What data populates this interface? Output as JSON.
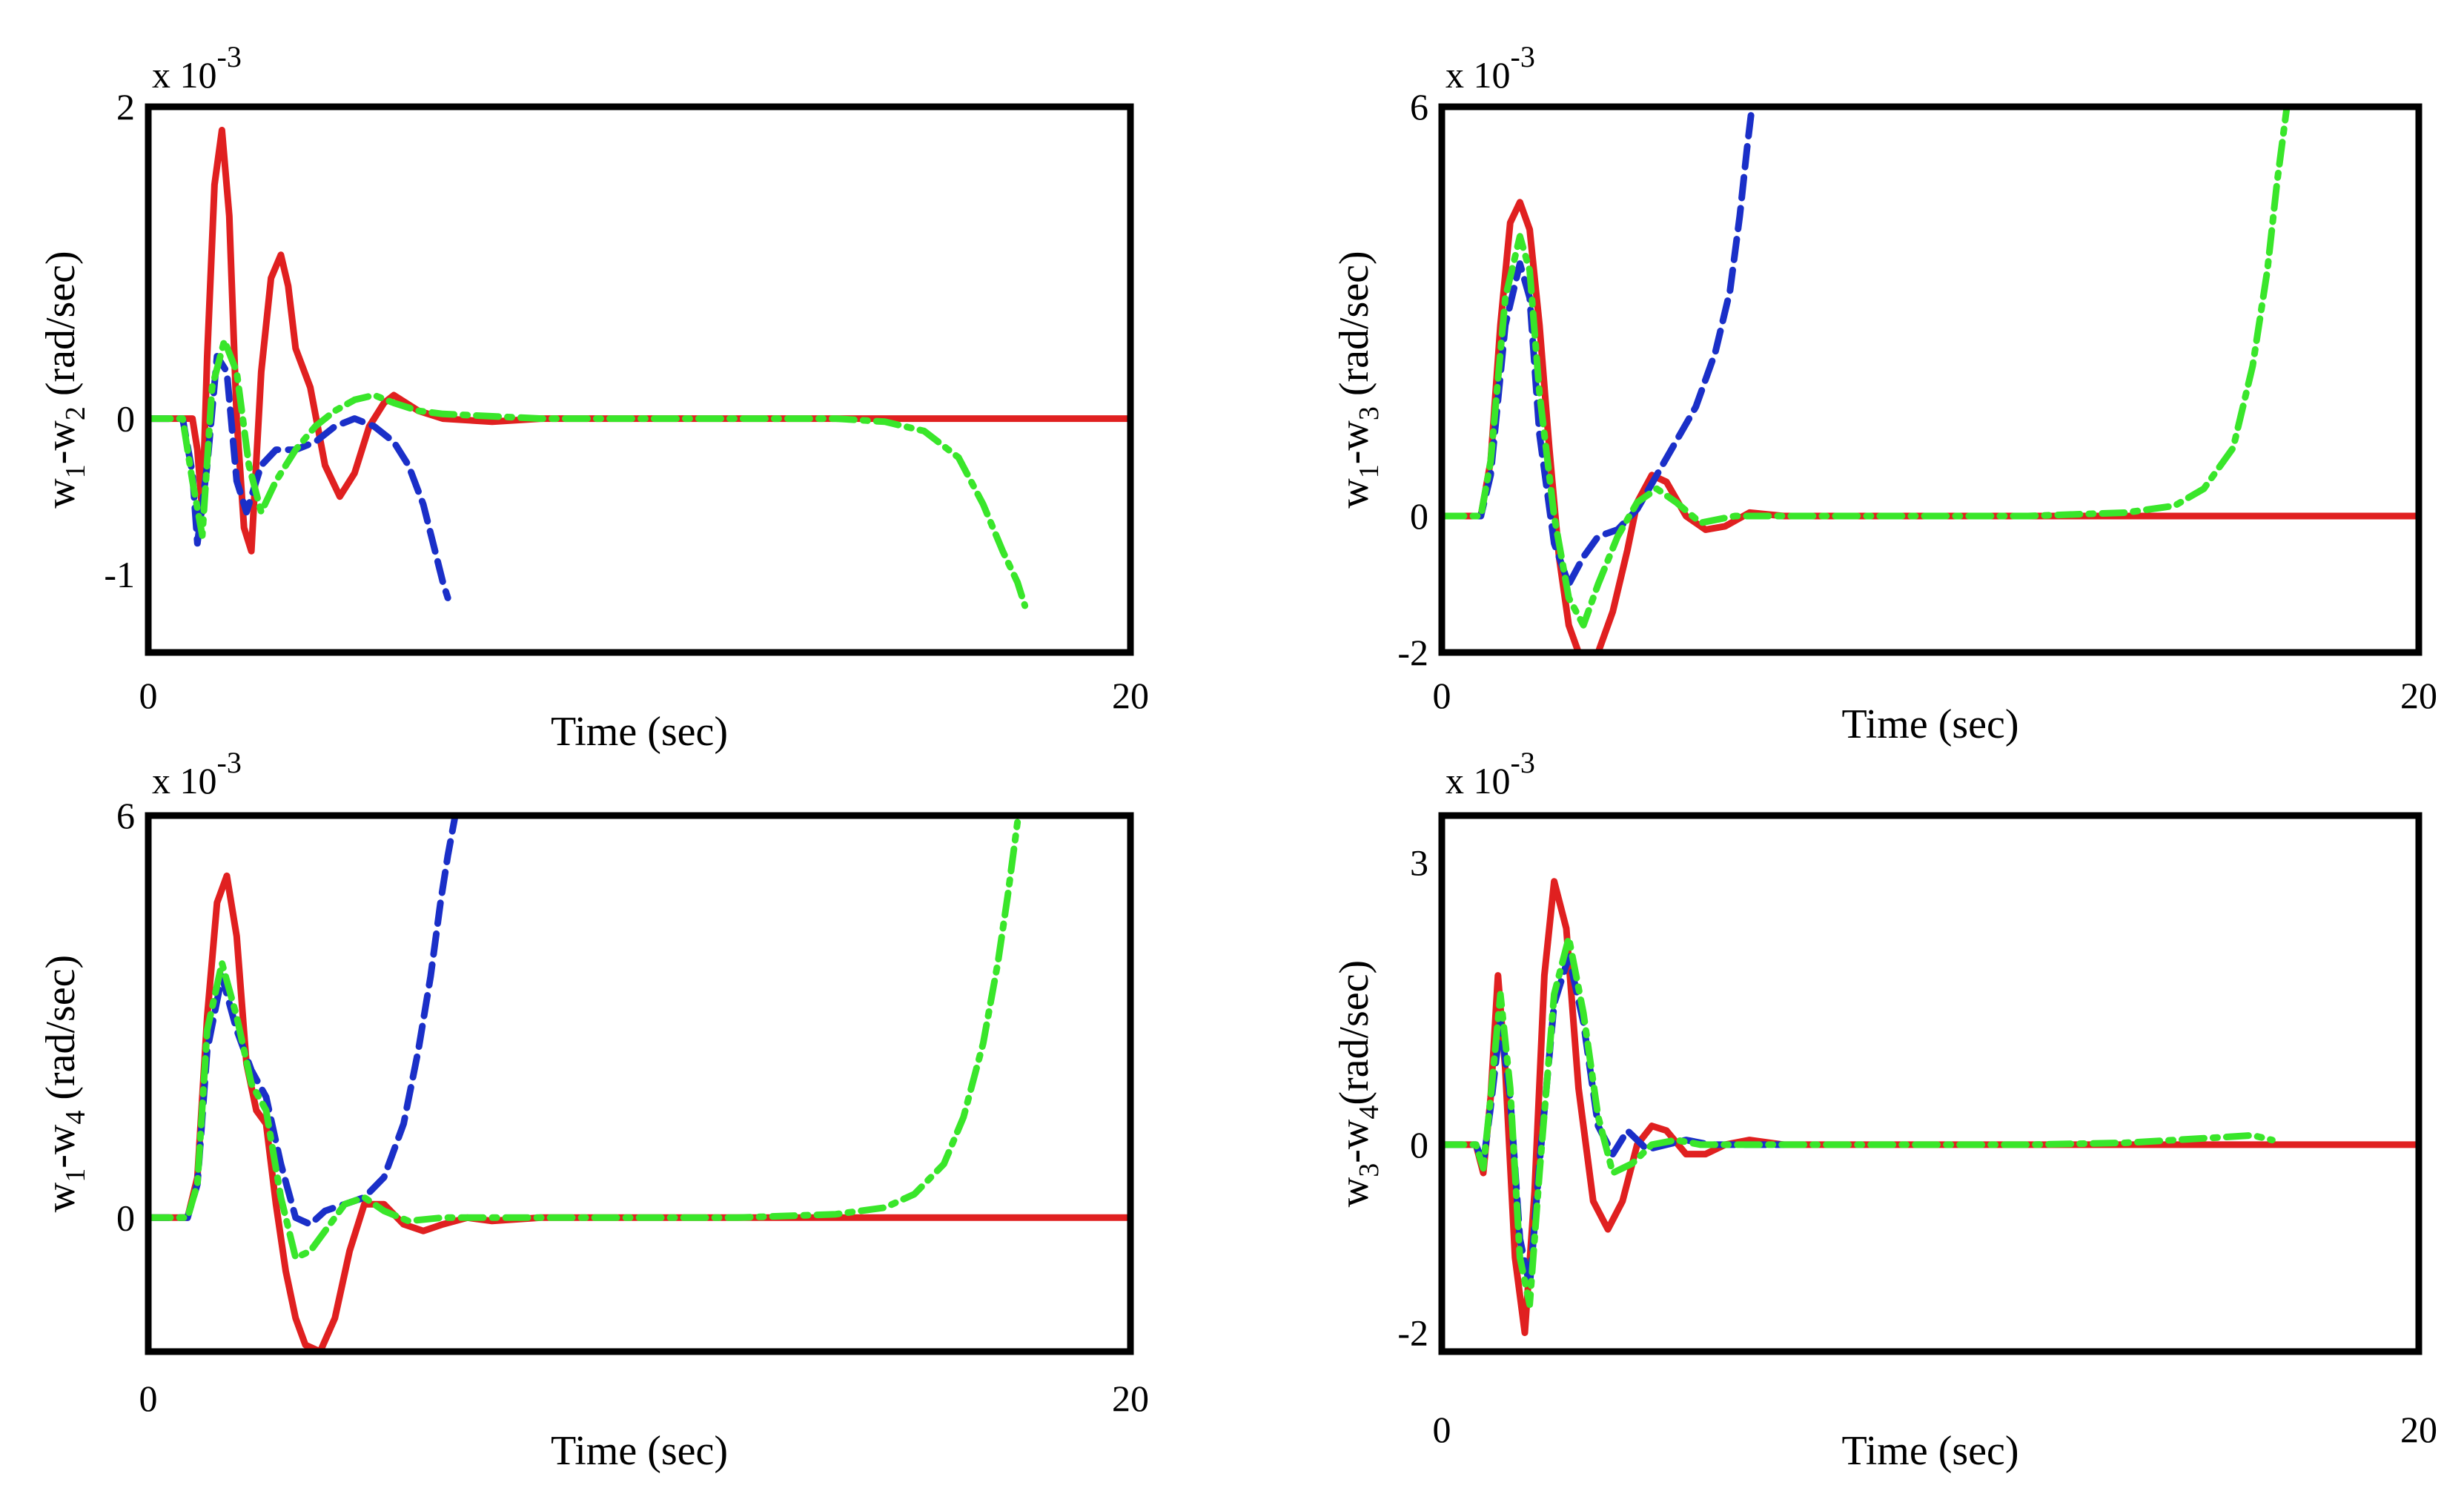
{
  "colors": {
    "red": "#e02020",
    "blue": "#1a2fc8",
    "green": "#39e62a",
    "axis": "#000000"
  },
  "chart_data": [
    {
      "type": "line",
      "id": "p1",
      "xlabel": "Time (sec)",
      "ylabel_parts": [
        "w",
        "1",
        "-w",
        "2",
        " (rad/sec)"
      ],
      "multiplier": {
        "base": "x 10",
        "exp": "-3"
      },
      "xlim": [
        0,
        20
      ],
      "ylim": [
        -1.5,
        2
      ],
      "xticks": [
        "0",
        "20"
      ],
      "xtick_values": [
        0,
        20
      ],
      "yticks": [
        "2",
        "0",
        "-1"
      ],
      "ytick_values": [
        2,
        0,
        -1
      ],
      "series": [
        {
          "name": "red-solid",
          "color": "#e02020",
          "dash": "solid",
          "x": [
            0,
            0.9,
            1.0,
            1.1,
            1.2,
            1.35,
            1.5,
            1.65,
            1.8,
            1.95,
            2.1,
            2.3,
            2.5,
            2.7,
            2.85,
            3.0,
            3.3,
            3.6,
            3.9,
            4.2,
            4.5,
            4.8,
            5.0,
            5.5,
            6.0,
            7.0,
            8,
            10,
            12,
            14,
            16,
            18,
            20
          ],
          "y": [
            0,
            0,
            -0.2,
            -0.6,
            0.4,
            1.5,
            1.85,
            1.3,
            0.0,
            -0.7,
            -0.85,
            0.3,
            0.9,
            1.05,
            0.85,
            0.45,
            0.2,
            -0.3,
            -0.5,
            -0.35,
            -0.05,
            0.1,
            0.15,
            0.05,
            0.0,
            -0.02,
            0,
            0,
            0,
            0,
            0,
            0,
            0
          ]
        },
        {
          "name": "blue-dashed",
          "color": "#1a2fc8",
          "dash": "dashed",
          "x": [
            0,
            0.7,
            0.9,
            1.0,
            1.2,
            1.4,
            1.6,
            1.8,
            2.0,
            2.3,
            2.6,
            3.0,
            3.4,
            3.8,
            4.2,
            4.6,
            5.0,
            5.3,
            5.6,
            5.8,
            6.0,
            6.1
          ],
          "y": [
            0,
            0,
            -0.35,
            -0.8,
            -0.3,
            0.4,
            0.3,
            -0.4,
            -0.6,
            -0.3,
            -0.2,
            -0.2,
            -0.15,
            -0.05,
            0.0,
            -0.05,
            -0.15,
            -0.3,
            -0.55,
            -0.8,
            -1.05,
            -1.15
          ]
        },
        {
          "name": "green-dashdot",
          "color": "#39e62a",
          "dash": "dashdot",
          "x": [
            0,
            0.7,
            0.9,
            1.1,
            1.3,
            1.55,
            1.8,
            2.05,
            2.3,
            2.6,
            3.0,
            3.4,
            3.8,
            4.2,
            4.6,
            5.0,
            5.5,
            6,
            8,
            10,
            12,
            14,
            15,
            15.8,
            16.5,
            17.0,
            17.4,
            17.7,
            17.85
          ],
          "y": [
            0,
            0,
            -0.4,
            -0.75,
            0.2,
            0.5,
            0.3,
            -0.3,
            -0.6,
            -0.4,
            -0.2,
            -0.05,
            0.05,
            0.12,
            0.15,
            0.1,
            0.05,
            0.03,
            0,
            0,
            0,
            0,
            -0.02,
            -0.08,
            -0.25,
            -0.55,
            -0.85,
            -1.05,
            -1.2
          ]
        }
      ]
    },
    {
      "type": "line",
      "id": "p2",
      "xlabel": "Time (sec)",
      "ylabel_parts": [
        "w",
        "1",
        "-w",
        "3",
        " (rad/sec)"
      ],
      "multiplier": {
        "base": "x 10",
        "exp": "-3"
      },
      "xlim": [
        0,
        20
      ],
      "ylim": [
        -2,
        6
      ],
      "xticks": [
        "0",
        "20"
      ],
      "xtick_values": [
        0,
        20
      ],
      "yticks": [
        "6",
        "0",
        "-2"
      ],
      "ytick_values": [
        6,
        0,
        -2
      ],
      "series": [
        {
          "name": "red-solid",
          "color": "#e02020",
          "dash": "solid",
          "x": [
            0,
            0.8,
            1.0,
            1.2,
            1.4,
            1.6,
            1.8,
            2.0,
            2.2,
            2.4,
            2.6,
            2.8,
            3.0,
            3.2,
            3.5,
            3.8,
            4.0,
            4.3,
            4.6,
            5.0,
            5.4,
            5.8,
            6.3,
            7,
            8,
            10,
            12,
            14,
            16,
            18,
            20
          ],
          "y": [
            0,
            0,
            0.8,
            2.8,
            4.3,
            4.6,
            4.2,
            2.8,
            1.0,
            -0.6,
            -1.6,
            -2.0,
            -2.05,
            -2.0,
            -1.4,
            -0.5,
            0.2,
            0.6,
            0.5,
            0.0,
            -0.2,
            -0.15,
            0.05,
            0,
            0,
            0,
            0,
            0,
            0,
            0,
            0
          ]
        },
        {
          "name": "blue-dashed",
          "color": "#1a2fc8",
          "dash": "dashed",
          "x": [
            0,
            0.8,
            1.0,
            1.3,
            1.6,
            1.8,
            2.0,
            2.3,
            2.6,
            2.9,
            3.2,
            3.6,
            4.0,
            4.4,
            4.8,
            5.2,
            5.6,
            5.9,
            6.1,
            6.25,
            6.35
          ],
          "y": [
            0,
            0,
            0.6,
            2.8,
            3.7,
            3.2,
            1.2,
            -0.4,
            -1.0,
            -0.6,
            -0.3,
            -0.2,
            0.1,
            0.6,
            1.1,
            1.6,
            2.4,
            3.3,
            4.4,
            5.4,
            6.0
          ]
        },
        {
          "name": "green-dashdot",
          "color": "#39e62a",
          "dash": "dashdot",
          "x": [
            0,
            0.8,
            1.0,
            1.3,
            1.6,
            1.8,
            2.0,
            2.3,
            2.6,
            2.9,
            3.2,
            3.6,
            4.0,
            4.4,
            4.8,
            5.3,
            6,
            8,
            10,
            12,
            14,
            15,
            15.6,
            16.2,
            16.6,
            16.9,
            17.1,
            17.3
          ],
          "y": [
            0,
            0,
            0.8,
            3.2,
            4.1,
            3.6,
            1.8,
            0.0,
            -1.2,
            -1.6,
            -1.0,
            -0.3,
            0.2,
            0.4,
            0.2,
            -0.1,
            0,
            0,
            0,
            0,
            0.05,
            0.15,
            0.4,
            1.0,
            2.2,
            3.6,
            4.9,
            6.0
          ]
        }
      ]
    },
    {
      "type": "line",
      "id": "p3",
      "xlabel": "Time (sec)",
      "ylabel_parts": [
        "w",
        "1",
        "-w",
        "4",
        " (rad/sec)"
      ],
      "multiplier": {
        "base": "x 10",
        "exp": "-3"
      },
      "xlim": [
        0,
        20
      ],
      "ylim": [
        -2,
        6
      ],
      "xticks": [
        "0",
        "20"
      ],
      "xtick_values": [
        0,
        20
      ],
      "yticks": [
        "6",
        "0"
      ],
      "ytick_values": [
        6,
        0
      ],
      "series": [
        {
          "name": "red-solid",
          "color": "#e02020",
          "dash": "solid",
          "x": [
            0,
            0.8,
            1.0,
            1.2,
            1.4,
            1.6,
            1.8,
            2.0,
            2.2,
            2.4,
            2.6,
            2.8,
            3.0,
            3.2,
            3.5,
            3.8,
            4.1,
            4.4,
            4.8,
            5.2,
            5.6,
            6.0,
            6.5,
            7,
            8,
            10,
            12,
            14,
            16,
            18,
            20
          ],
          "y": [
            0,
            0,
            0.6,
            3.0,
            4.7,
            5.1,
            4.2,
            2.3,
            1.6,
            1.4,
            0.2,
            -0.8,
            -1.5,
            -1.9,
            -2.0,
            -1.5,
            -0.5,
            0.2,
            0.2,
            -0.1,
            -0.2,
            -0.1,
            0,
            -0.05,
            0,
            0,
            0,
            0,
            0,
            0,
            0
          ]
        },
        {
          "name": "blue-dashed",
          "color": "#1a2fc8",
          "dash": "dashed",
          "x": [
            0,
            0.8,
            1.0,
            1.2,
            1.5,
            1.8,
            2.1,
            2.4,
            2.7,
            3.0,
            3.3,
            3.6,
            4.0,
            4.4,
            4.8,
            5.2,
            5.5,
            5.75,
            5.95,
            6.1,
            6.25
          ],
          "y": [
            0,
            0,
            0.5,
            2.5,
            3.6,
            2.8,
            2.2,
            1.8,
            0.8,
            0.0,
            -0.1,
            0.1,
            0.2,
            0.3,
            0.6,
            1.4,
            2.5,
            3.6,
            4.7,
            5.4,
            6.0
          ]
        },
        {
          "name": "green-dashdot",
          "color": "#39e62a",
          "dash": "dashdot",
          "x": [
            0,
            0.8,
            1.0,
            1.2,
            1.5,
            1.8,
            2.1,
            2.4,
            2.7,
            3.0,
            3.3,
            3.6,
            4.0,
            4.4,
            4.8,
            5.3,
            6,
            8,
            10,
            12,
            14,
            15,
            15.6,
            16.2,
            16.6,
            17.0,
            17.3,
            17.5,
            17.7
          ],
          "y": [
            0,
            0,
            0.5,
            2.8,
            3.8,
            3.0,
            2.0,
            1.6,
            0.3,
            -0.6,
            -0.5,
            -0.2,
            0.2,
            0.3,
            0.1,
            -0.05,
            0,
            0,
            0,
            0,
            0.05,
            0.15,
            0.35,
            0.8,
            1.5,
            2.6,
            3.8,
            4.8,
            5.9
          ]
        }
      ]
    },
    {
      "type": "line",
      "id": "p4",
      "xlabel": "Time (sec)",
      "ylabel_parts": [
        "w",
        "3",
        "-w",
        "4",
        "(rad/sec)"
      ],
      "multiplier": {
        "base": "x 10",
        "exp": "-3"
      },
      "xlim": [
        0,
        20
      ],
      "ylim": [
        -2.2,
        3.5
      ],
      "xticks": [
        "0",
        "20"
      ],
      "xtick_values": [
        0,
        20
      ],
      "yticks": [
        "3",
        "0",
        "-2"
      ],
      "ytick_values": [
        3,
        0,
        -2
      ],
      "series": [
        {
          "name": "red-solid",
          "color": "#e02020",
          "dash": "solid",
          "x": [
            0,
            0.7,
            0.85,
            1.0,
            1.15,
            1.3,
            1.5,
            1.7,
            1.9,
            2.1,
            2.3,
            2.55,
            2.8,
            3.1,
            3.4,
            3.7,
            4.0,
            4.3,
            4.6,
            5.0,
            5.4,
            5.8,
            6.3,
            7,
            8,
            10,
            12,
            14,
            16,
            18,
            20
          ],
          "y": [
            0,
            0,
            -0.3,
            0.5,
            1.8,
            0.8,
            -1.2,
            -2.0,
            -0.5,
            1.8,
            2.8,
            2.3,
            0.6,
            -0.6,
            -0.9,
            -0.6,
            0.0,
            0.2,
            0.15,
            -0.1,
            -0.1,
            0.0,
            0.05,
            0,
            0,
            0,
            0,
            0,
            0,
            0,
            0
          ]
        },
        {
          "name": "blue-dashed",
          "color": "#1a2fc8",
          "dash": "dashed",
          "x": [
            0,
            0.7,
            0.85,
            1.0,
            1.2,
            1.4,
            1.6,
            1.8,
            2.0,
            2.3,
            2.6,
            2.9,
            3.2,
            3.5,
            3.8,
            4.2,
            4.6,
            5.0,
            5.5,
            6,
            6.5,
            7
          ],
          "y": [
            0,
            0,
            -0.2,
            0.4,
            1.3,
            0.5,
            -1.0,
            -1.5,
            -0.2,
            1.5,
            2.0,
            1.3,
            0.2,
            -0.1,
            0.15,
            -0.05,
            0.0,
            0.05,
            0,
            0,
            0,
            0
          ]
        },
        {
          "name": "green-dashdot",
          "color": "#39e62a",
          "dash": "dashdot",
          "x": [
            0,
            0.7,
            0.85,
            1.0,
            1.2,
            1.4,
            1.6,
            1.8,
            2.0,
            2.3,
            2.6,
            2.9,
            3.2,
            3.5,
            3.9,
            4.3,
            4.8,
            5.3,
            6,
            8,
            10,
            12,
            14,
            15,
            16,
            16.6,
            17.0
          ],
          "y": [
            0,
            0,
            -0.25,
            0.5,
            1.6,
            0.6,
            -1.2,
            -1.7,
            -0.3,
            1.6,
            2.2,
            1.4,
            0.3,
            -0.3,
            -0.2,
            0.0,
            0.05,
            0.0,
            0,
            0,
            0,
            0,
            0.02,
            0.05,
            0.08,
            0.1,
            0.05
          ]
        }
      ]
    }
  ]
}
